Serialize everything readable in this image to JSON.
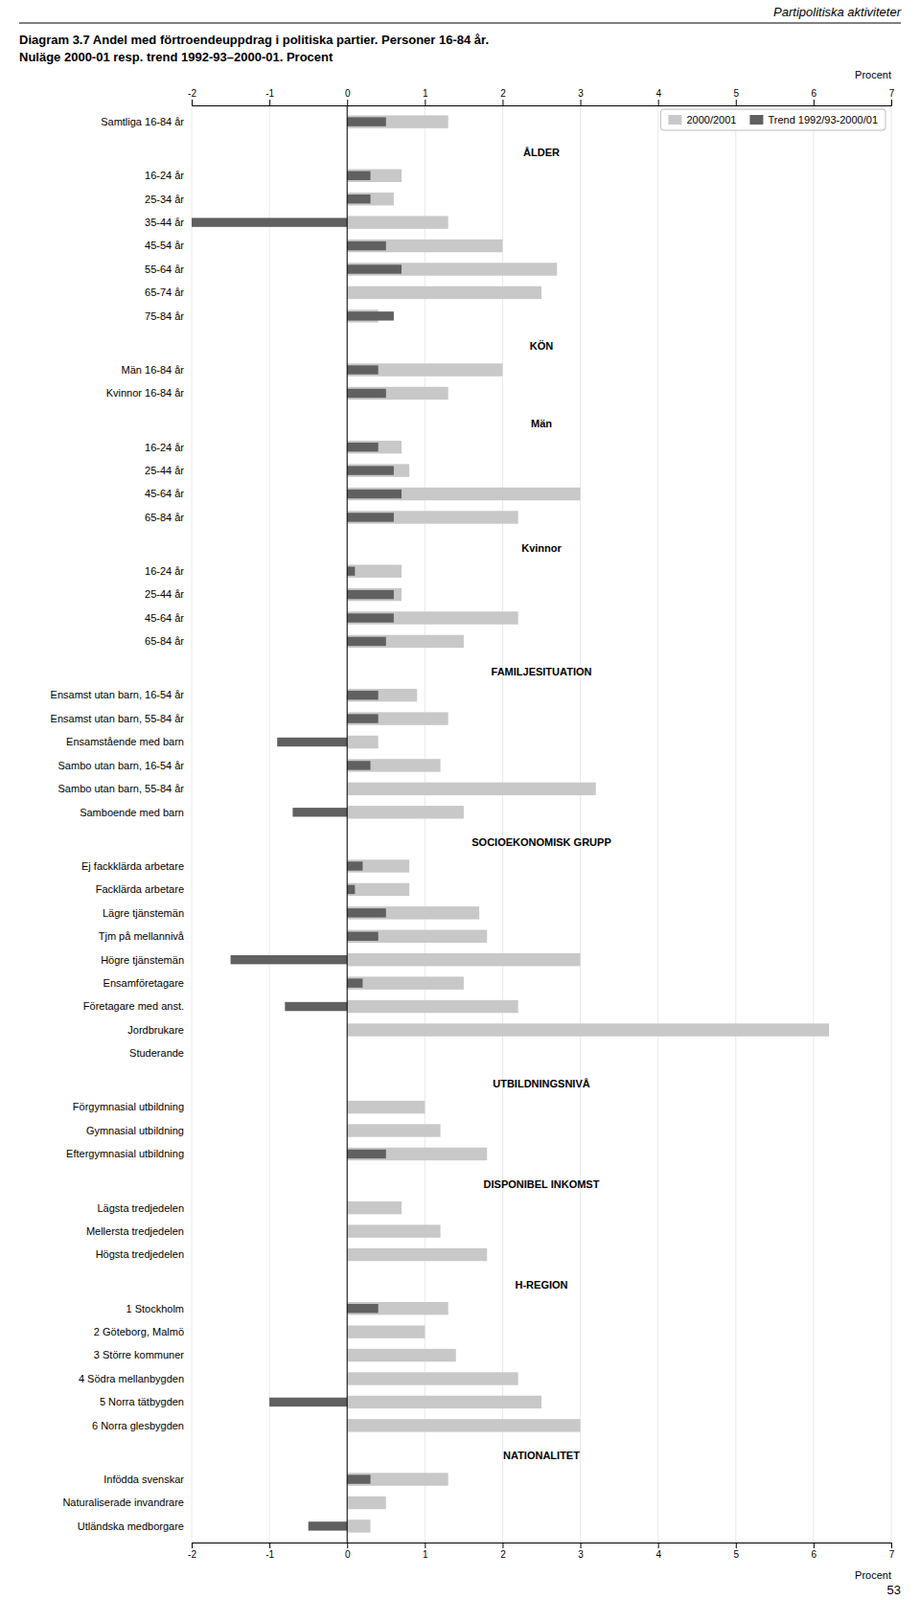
{
  "chart_data": {
    "type": "bar",
    "orientation": "horizontal",
    "title": "Diagram 3.7  Andel med förtroendeuppdrag i politiska partier. Personer 16-84 år.",
    "subtitle": "Nuläge 2000-01 resp. trend 1992-93–2000-01. Procent",
    "annotations": [
      "Partipolitiska aktiviteter",
      "53"
    ],
    "xlabel": "Procent",
    "xlim": [
      -2,
      7
    ],
    "xticks": [
      -2,
      -1,
      0,
      1,
      2,
      3,
      4,
      5,
      6,
      7
    ],
    "grid": true,
    "legend": "upper right",
    "categories": [
      "Samtliga 16-84 år",
      null,
      "ÅLDER",
      "16-24 år",
      "25-34 år",
      "35-44 år",
      "45-54 år",
      "55-64 år",
      "65-74 år",
      "75-84 år",
      null,
      "KÖN",
      "Män 16-84 år",
      "Kvinnor 16-84 år",
      null,
      "Män",
      "16-24 år",
      "25-44 år",
      "45-64 år",
      "65-84 år",
      null,
      "Kvinnor",
      "16-24 år",
      "25-44 år",
      "45-64 år",
      "65-84 år",
      null,
      "FAMILJESITUATION",
      "Ensamst utan barn, 16-54 år",
      "Ensamst utan barn, 55-84 år",
      "Ensamstående med barn",
      "Sambo utan barn, 16-54 år",
      "Sambo utan barn, 55-84 år",
      "Samboende med barn",
      null,
      "SOCIOEKONOMISK GRUPP",
      "Ej fackklärda arbetare",
      "Facklärda arbetare",
      "Lägre tjänstemän",
      "Tjm på mellannivå",
      "Högre tjänstemän",
      "Ensamföretagare",
      "Företagare med anst.",
      "Jordbrukare",
      "Studerande",
      null,
      "UTBILDNINGSNIVÅ",
      "Förgymnasial utbildning",
      "Gymnasial utbildning",
      "Eftergymnasial utbildning",
      null,
      "DISPONIBEL INKOMST",
      "Lägsta tredjedelen",
      "Mellersta tredjedelen",
      "Högsta tredjedelen",
      null,
      "H-REGION",
      "1 Stockholm",
      "2 Göteborg, Malmö",
      "3 Större kommuner",
      "4 Södra mellanbygden",
      "5 Norra tätbygden",
      "6 Norra glesbygden",
      null,
      "NATIONALITET",
      "Infödda svenskar",
      "Naturaliserade invandrare",
      "Utländska medborgare"
    ],
    "series": [
      {
        "name": "2000/2001",
        "color": "#c8c8c8",
        "values": [
          1.3,
          null,
          null,
          0.7,
          0.6,
          1.3,
          2.0,
          2.7,
          2.5,
          0.4,
          null,
          null,
          2.0,
          1.3,
          null,
          null,
          0.7,
          0.8,
          3.0,
          2.2,
          null,
          null,
          0.7,
          0.7,
          2.2,
          1.5,
          null,
          null,
          0.9,
          1.3,
          0.4,
          1.2,
          3.2,
          1.5,
          null,
          null,
          0.8,
          0.8,
          1.7,
          1.8,
          3.0,
          1.5,
          2.2,
          6.2,
          0.0,
          null,
          null,
          1.0,
          1.2,
          1.8,
          null,
          null,
          0.7,
          1.2,
          1.8,
          null,
          null,
          1.3,
          1.0,
          1.4,
          2.2,
          2.5,
          3.0,
          null,
          null,
          1.3,
          0.5,
          0.3
        ]
      },
      {
        "name": "Trend 1992/93-2000/01",
        "color": "#606060",
        "values": [
          0.5,
          null,
          null,
          0.3,
          0.3,
          -2.0,
          0.5,
          0.7,
          0.0,
          0.6,
          null,
          null,
          0.4,
          0.5,
          null,
          null,
          0.4,
          0.6,
          0.7,
          0.6,
          null,
          null,
          0.1,
          0.6,
          0.6,
          0.5,
          null,
          null,
          0.4,
          0.4,
          -0.9,
          0.3,
          0.0,
          -0.7,
          null,
          null,
          0.2,
          0.1,
          0.5,
          0.4,
          -1.5,
          0.2,
          -0.8,
          0.0,
          0.0,
          null,
          null,
          0.0,
          0.0,
          0.5,
          null,
          null,
          0.0,
          0.0,
          0.0,
          null,
          null,
          0.4,
          0.0,
          0.0,
          0.0,
          -1.0,
          0.0,
          null,
          null,
          0.3,
          0.0,
          -0.5
        ]
      }
    ]
  }
}
